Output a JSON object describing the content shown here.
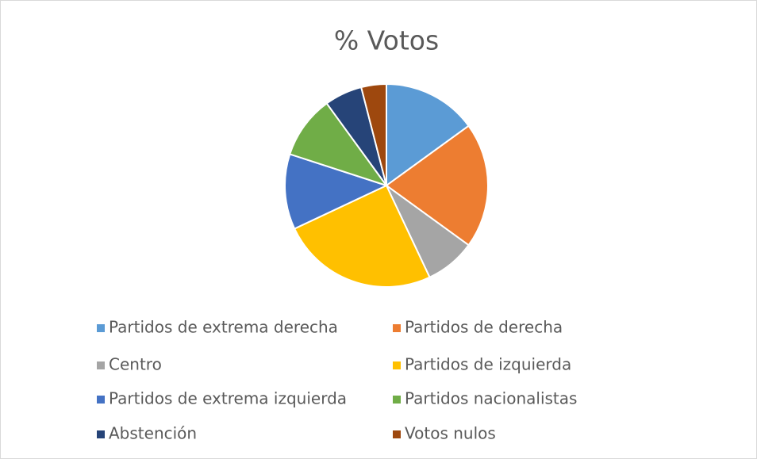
{
  "chart_data": {
    "type": "pie",
    "title": "% Votos",
    "categories": [
      "Partidos de extrema derecha",
      "Partidos de derecha",
      "Centro",
      "Partidos de izquierda",
      "Partidos de extrema izquierda",
      "Partidos nacionalistas",
      "Abstención",
      "Votos nulos"
    ],
    "values": [
      15,
      20,
      8,
      25,
      12,
      10,
      6,
      4
    ],
    "colors": [
      "#5b9bd5",
      "#ed7d31",
      "#a5a5a5",
      "#ffc000",
      "#4472c4",
      "#70ad47",
      "#264478",
      "#9e480e"
    ],
    "legend": "bottom"
  }
}
